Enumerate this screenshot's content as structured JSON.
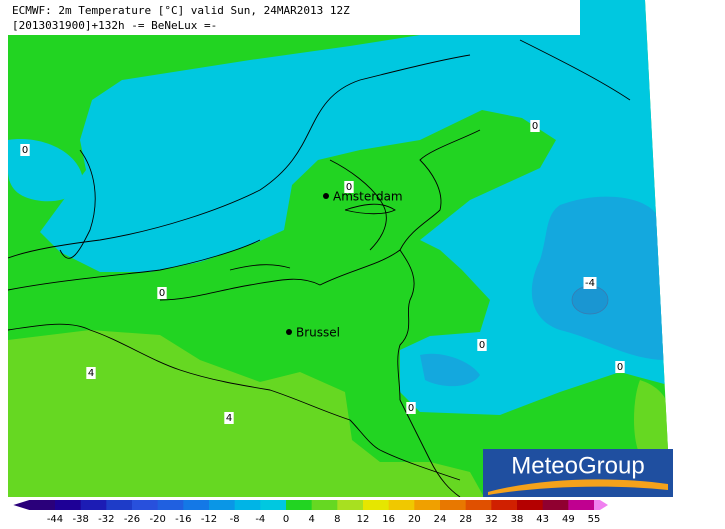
{
  "header": {
    "line1": "ECMWF: 2m Temperature [°C] valid Sun, 24MAR2013 12Z",
    "line2": "[2013031900]+132h -= BeNeLux =-"
  },
  "cities": [
    "Amsterdam",
    "Brussel"
  ],
  "contour_labels": [
    "0",
    "0",
    "0",
    "0",
    "0",
    "0",
    "0",
    "4",
    "4",
    "-4"
  ],
  "colorbar": {
    "labels": [
      "-44",
      "-38",
      "-32",
      "-26",
      "-20",
      "-16",
      "-12",
      "-8",
      "-4",
      "0",
      "4",
      "8",
      "12",
      "16",
      "20",
      "24",
      "28",
      "32",
      "38",
      "43",
      "49",
      "55"
    ]
  },
  "logo": "MeteoGroup"
}
